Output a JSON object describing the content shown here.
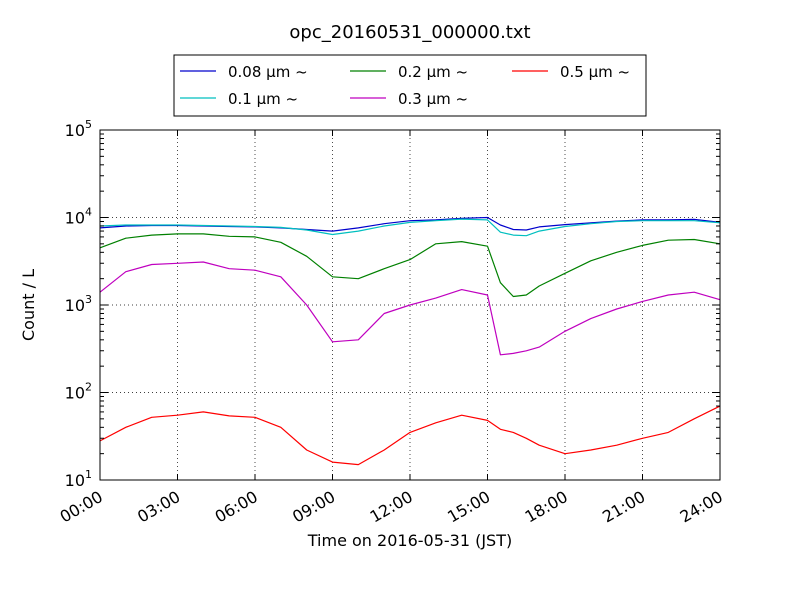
{
  "chart_data": {
    "type": "line",
    "title": "opc_20160531_000000.txt",
    "xlabel": "Time on 2016-05-31 (JST)",
    "ylabel": "Count / L",
    "yscale": "log",
    "ylim": [
      10,
      100000
    ],
    "xlim": [
      "00:00",
      "24:00"
    ],
    "xtick_labels": [
      "00:00",
      "03:00",
      "06:00",
      "09:00",
      "12:00",
      "15:00",
      "18:00",
      "21:00",
      "24:00"
    ],
    "ytick_labels": [
      {
        "base": "10",
        "exp": "1"
      },
      {
        "base": "10",
        "exp": "2"
      },
      {
        "base": "10",
        "exp": "3"
      },
      {
        "base": "10",
        "exp": "4"
      },
      {
        "base": "10",
        "exp": "5"
      }
    ],
    "grid": true,
    "legend_position": "top-center",
    "x": [
      "00:00",
      "01:00",
      "02:00",
      "03:00",
      "04:00",
      "05:00",
      "06:00",
      "07:00",
      "08:00",
      "09:00",
      "10:00",
      "11:00",
      "12:00",
      "13:00",
      "14:00",
      "15:00",
      "15:30",
      "16:00",
      "16:30",
      "17:00",
      "18:00",
      "19:00",
      "20:00",
      "21:00",
      "22:00",
      "23:00",
      "24:00"
    ],
    "series": [
      {
        "name": "0.08 μm ~",
        "color": "#0000cc",
        "values": [
          7600,
          8000,
          8100,
          8100,
          8000,
          7900,
          7800,
          7600,
          7300,
          7000,
          7600,
          8500,
          9200,
          9400,
          9800,
          10000,
          8200,
          7300,
          7200,
          7800,
          8300,
          8700,
          9100,
          9400,
          9400,
          9500,
          8800
        ]
      },
      {
        "name": "0.1 μm ~",
        "color": "#00bfbf",
        "values": [
          8000,
          8200,
          8200,
          8200,
          8100,
          8000,
          7900,
          7700,
          7200,
          6400,
          7000,
          8000,
          8800,
          9200,
          9600,
          9400,
          6800,
          6300,
          6200,
          7000,
          7900,
          8500,
          9000,
          9200,
          9200,
          9200,
          8700
        ]
      },
      {
        "name": "0.2 μm ~",
        "color": "#008000",
        "values": [
          4500,
          5800,
          6300,
          6500,
          6500,
          6100,
          6000,
          5200,
          3600,
          2100,
          2000,
          2600,
          3300,
          5000,
          5300,
          4700,
          1800,
          1250,
          1300,
          1650,
          2300,
          3200,
          4000,
          4800,
          5500,
          5600,
          5000
        ]
      },
      {
        "name": "0.3 μm ~",
        "color": "#bf00bf",
        "values": [
          1400,
          2400,
          2900,
          3000,
          3100,
          2600,
          2500,
          2100,
          1000,
          380,
          400,
          800,
          1000,
          1200,
          1500,
          1300,
          270,
          280,
          300,
          330,
          500,
          700,
          900,
          1100,
          1300,
          1400,
          1150
        ]
      },
      {
        "name": "0.5 μm ~",
        "color": "#ff0000",
        "values": [
          28,
          40,
          52,
          55,
          60,
          54,
          52,
          40,
          22,
          16,
          15,
          22,
          35,
          45,
          55,
          48,
          38,
          35,
          30,
          25,
          20,
          22,
          25,
          30,
          35,
          50,
          70
        ]
      }
    ]
  }
}
